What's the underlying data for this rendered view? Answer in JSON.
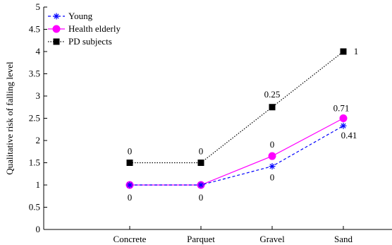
{
  "chart_data": {
    "type": "line",
    "categories": [
      "Concrete",
      "Parquet",
      "Gravel",
      "Sand"
    ],
    "ylabel": "Qualitative risk of falling level",
    "xlabel": "",
    "ylim": [
      0,
      5
    ],
    "yticks": [
      "0",
      "0.5",
      "1",
      "1.5",
      "2",
      "2.5",
      "3",
      "3.5",
      "4",
      "4.5",
      "5"
    ],
    "grid": false,
    "legend_position": "top-left",
    "series": [
      {
        "name": "Young",
        "values": [
          1.0,
          1.0,
          1.42,
          2.33
        ],
        "color": "#0000ff",
        "line": "dashed",
        "marker": "asterisk",
        "labels": [
          "",
          "",
          "0",
          "0.41"
        ]
      },
      {
        "name": "Health elderly",
        "values": [
          1.0,
          1.0,
          1.65,
          2.5
        ],
        "color": "#ff00ff",
        "line": "solid",
        "marker": "circle",
        "labels": [
          "0",
          "0",
          "0",
          "0.71"
        ]
      },
      {
        "name": "PD subjects",
        "values": [
          1.5,
          1.5,
          2.75,
          4.0
        ],
        "color": "#000000",
        "line": "dotted",
        "marker": "square",
        "labels": [
          "0",
          "0",
          "0.25",
          "1"
        ]
      }
    ]
  }
}
